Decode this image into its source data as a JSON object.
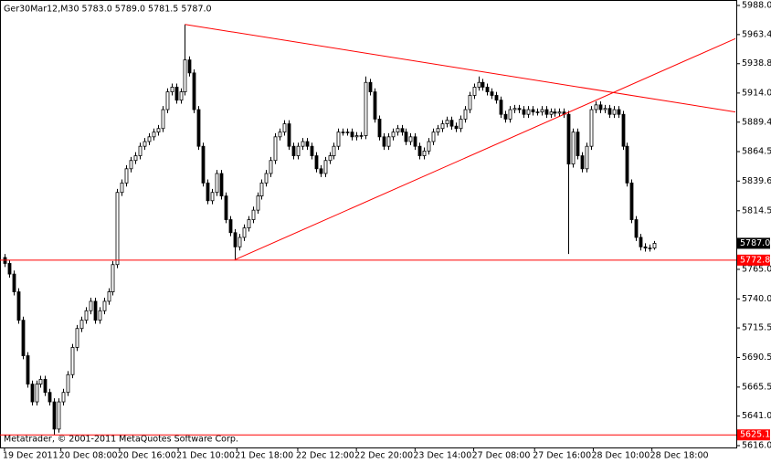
{
  "chart_data": {
    "type": "candlestick",
    "title": "Ger30Mar12,M30  5783.0 5789.0 5781.5 5787.0",
    "footer": "Metatrader, © 2001-2011 MetaQuotes Software Corp.",
    "open": [
      5775,
      5770,
      5761,
      5746,
      5722,
      5692,
      5668,
      5653,
      5668,
      5672,
      5661,
      5653,
      5630,
      5653,
      5661,
      5676,
      5699,
      5715,
      5722,
      5730,
      5738,
      5722,
      5730,
      5738,
      5746,
      5769,
      5830,
      5838,
      5850,
      5857,
      5861,
      5869,
      5873,
      5877,
      5881,
      5884,
      5900,
      5915,
      5919,
      5908,
      5915,
      5942,
      5931,
      5900,
      5869,
      5838,
      5823,
      5830,
      5846,
      5827,
      5807,
      5796,
      5784,
      5792,
      5800,
      5807,
      5815,
      5827,
      5838,
      5846,
      5857,
      5877,
      5881,
      5888,
      5869,
      5861,
      5869,
      5873,
      5869,
      5861,
      5850,
      5846,
      5857,
      5861,
      5869,
      5881,
      5881,
      5881,
      5877,
      5878,
      5878,
      5923,
      5915,
      5892,
      5877,
      5869,
      5877,
      5881,
      5884,
      5881,
      5873,
      5877,
      5869,
      5861,
      5865,
      5873,
      5881,
      5884,
      5888,
      5891,
      5886,
      5884,
      5892,
      5900,
      5912,
      5919,
      5923,
      5919,
      5915,
      5912,
      5908,
      5896,
      5892,
      5900,
      5901,
      5900,
      5896,
      5900,
      5898,
      5898,
      5900,
      5896,
      5898,
      5897,
      5898,
      5896,
      5854,
      5881,
      5861,
      5850,
      5869,
      5900,
      5904,
      5900,
      5901,
      5896,
      5900,
      5896,
      5869,
      5838,
      5807,
      5792,
      5784,
      5783,
      5783
    ],
    "high": [
      5778,
      5773,
      5764,
      5749,
      5725,
      5695,
      5671,
      5671,
      5675,
      5675,
      5664,
      5656,
      5656,
      5664,
      5679,
      5702,
      5718,
      5725,
      5733,
      5741,
      5741,
      5733,
      5741,
      5749,
      5772,
      5833,
      5841,
      5853,
      5860,
      5864,
      5872,
      5876,
      5880,
      5884,
      5887,
      5903,
      5918,
      5922,
      5922,
      5918,
      5972,
      5945,
      5934,
      5903,
      5872,
      5841,
      5833,
      5849,
      5849,
      5830,
      5810,
      5799,
      5795,
      5803,
      5810,
      5818,
      5830,
      5841,
      5849,
      5860,
      5880,
      5884,
      5891,
      5891,
      5872,
      5872,
      5876,
      5876,
      5872,
      5864,
      5853,
      5860,
      5864,
      5872,
      5884,
      5884,
      5884,
      5884,
      5881,
      5881,
      5928,
      5926,
      5918,
      5895,
      5880,
      5880,
      5884,
      5887,
      5887,
      5884,
      5880,
      5880,
      5872,
      5868,
      5876,
      5884,
      5887,
      5891,
      5894,
      5894,
      5889,
      5895,
      5903,
      5915,
      5922,
      5928,
      5926,
      5922,
      5918,
      5915,
      5911,
      5899,
      5903,
      5904,
      5904,
      5903,
      5903,
      5903,
      5901,
      5903,
      5903,
      5901,
      5901,
      5901,
      5901,
      5899,
      5884,
      5884,
      5864,
      5872,
      5903,
      5907,
      5907,
      5904,
      5904,
      5903,
      5903,
      5899,
      5872,
      5841,
      5810,
      5795,
      5787,
      5786,
      5789
    ],
    "low": [
      5767,
      5758,
      5743,
      5719,
      5689,
      5665,
      5650,
      5650,
      5665,
      5658,
      5650,
      5625,
      5627,
      5650,
      5658,
      5673,
      5696,
      5712,
      5719,
      5727,
      5719,
      5719,
      5727,
      5735,
      5743,
      5766,
      5827,
      5835,
      5847,
      5854,
      5858,
      5866,
      5870,
      5874,
      5878,
      5881,
      5897,
      5912,
      5905,
      5905,
      5912,
      5928,
      5897,
      5866,
      5835,
      5820,
      5820,
      5827,
      5824,
      5804,
      5793,
      5773,
      5781,
      5789,
      5797,
      5804,
      5812,
      5824,
      5835,
      5843,
      5854,
      5874,
      5878,
      5866,
      5858,
      5858,
      5866,
      5866,
      5858,
      5847,
      5843,
      5843,
      5854,
      5858,
      5866,
      5878,
      5878,
      5874,
      5874,
      5875,
      5875,
      5912,
      5889,
      5874,
      5866,
      5866,
      5874,
      5878,
      5878,
      5870,
      5870,
      5866,
      5858,
      5858,
      5862,
      5870,
      5878,
      5881,
      5885,
      5883,
      5881,
      5881,
      5889,
      5897,
      5909,
      5916,
      5916,
      5912,
      5909,
      5905,
      5893,
      5889,
      5889,
      5897,
      5897,
      5893,
      5893,
      5895,
      5895,
      5895,
      5893,
      5893,
      5894,
      5894,
      5893,
      5778,
      5851,
      5858,
      5847,
      5847,
      5866,
      5897,
      5897,
      5897,
      5893,
      5893,
      5893,
      5866,
      5835,
      5804,
      5789,
      5781,
      5780,
      5780,
      5781.5
    ],
    "close": [
      5770,
      5761,
      5746,
      5722,
      5692,
      5668,
      5653,
      5668,
      5672,
      5661,
      5653,
      5630,
      5653,
      5661,
      5676,
      5699,
      5715,
      5722,
      5730,
      5738,
      5722,
      5730,
      5738,
      5746,
      5769,
      5830,
      5838,
      5850,
      5857,
      5861,
      5869,
      5873,
      5877,
      5881,
      5884,
      5900,
      5915,
      5919,
      5908,
      5915,
      5942,
      5931,
      5900,
      5869,
      5838,
      5823,
      5830,
      5846,
      5827,
      5807,
      5796,
      5784,
      5792,
      5800,
      5807,
      5815,
      5827,
      5838,
      5846,
      5857,
      5877,
      5881,
      5888,
      5869,
      5861,
      5869,
      5873,
      5869,
      5861,
      5850,
      5846,
      5857,
      5861,
      5869,
      5881,
      5881,
      5881,
      5877,
      5878,
      5878,
      5923,
      5915,
      5892,
      5877,
      5869,
      5877,
      5881,
      5884,
      5881,
      5873,
      5877,
      5869,
      5861,
      5865,
      5873,
      5881,
      5884,
      5888,
      5891,
      5886,
      5884,
      5892,
      5900,
      5912,
      5919,
      5923,
      5919,
      5915,
      5912,
      5908,
      5896,
      5892,
      5900,
      5901,
      5900,
      5896,
      5900,
      5898,
      5898,
      5900,
      5896,
      5898,
      5897,
      5898,
      5896,
      5854,
      5881,
      5861,
      5850,
      5869,
      5900,
      5904,
      5900,
      5901,
      5896,
      5900,
      5896,
      5869,
      5838,
      5807,
      5792,
      5784,
      5783,
      5783,
      5787
    ],
    "xlim": [
      -1,
      162.2
    ],
    "xticks": [
      {
        "value": 0,
        "label": "19 Dec 2011"
      },
      {
        "value": 12.5,
        "label": "20 Dec 08:00"
      },
      {
        "value": 25.5,
        "label": "20 Dec 16:00"
      },
      {
        "value": 38.5,
        "label": "21 Dec 10:00"
      },
      {
        "value": 51.5,
        "label": "21 Dec 18:00"
      },
      {
        "value": 65,
        "label": "22 Dec 12:00"
      },
      {
        "value": 78,
        "label": "22 Dec 20:00"
      },
      {
        "value": 91,
        "label": "23 Dec 14:00"
      },
      {
        "value": 104,
        "label": "27 Dec 08:00"
      },
      {
        "value": 117.5,
        "label": "27 Dec 16:00"
      },
      {
        "value": 130.5,
        "label": "28 Dec 10:00"
      },
      {
        "value": 143.5,
        "label": "28 Dec 18:00"
      }
    ],
    "ylim": [
      5616,
      5988
    ],
    "yticks": [
      {
        "value": 5988,
        "label": "5988.0"
      },
      {
        "value": 5963.4,
        "label": "5963.4"
      },
      {
        "value": 5938.8,
        "label": "5938.8"
      },
      {
        "value": 5914,
        "label": "5914.0"
      },
      {
        "value": 5889.4,
        "label": "5889.4"
      },
      {
        "value": 5864.5,
        "label": "5864.5"
      },
      {
        "value": 5839.6,
        "label": "5839.6"
      },
      {
        "value": 5814.5,
        "label": "5814.5"
      },
      {
        "value": 5765,
        "label": "5765.0"
      },
      {
        "value": 5740,
        "label": "5740.0"
      },
      {
        "value": 5715.5,
        "label": "5715.5"
      },
      {
        "value": 5690.5,
        "label": "5690.5"
      },
      {
        "value": 5665.5,
        "label": "5665.5"
      },
      {
        "value": 5641,
        "label": "5641.0"
      },
      {
        "value": 5616,
        "label": "5616.0"
      }
    ],
    "up_color": "#ffffff",
    "down_color": "#000000",
    "hlines": [
      {
        "value": 5772.8,
        "color": "#ff0000"
      },
      {
        "value": 5625.1,
        "color": "#ff0000"
      }
    ],
    "last_price": {
      "value": 5787,
      "label": "5787.0",
      "color": "#000000"
    },
    "trendlines": [
      {
        "x": [
          40,
          162
        ],
        "y": [
          5972,
          5898
        ],
        "color": "#ff0000"
      },
      {
        "x": [
          51,
          162
        ],
        "y": [
          5773,
          5960
        ],
        "color": "#ff0000"
      }
    ]
  }
}
